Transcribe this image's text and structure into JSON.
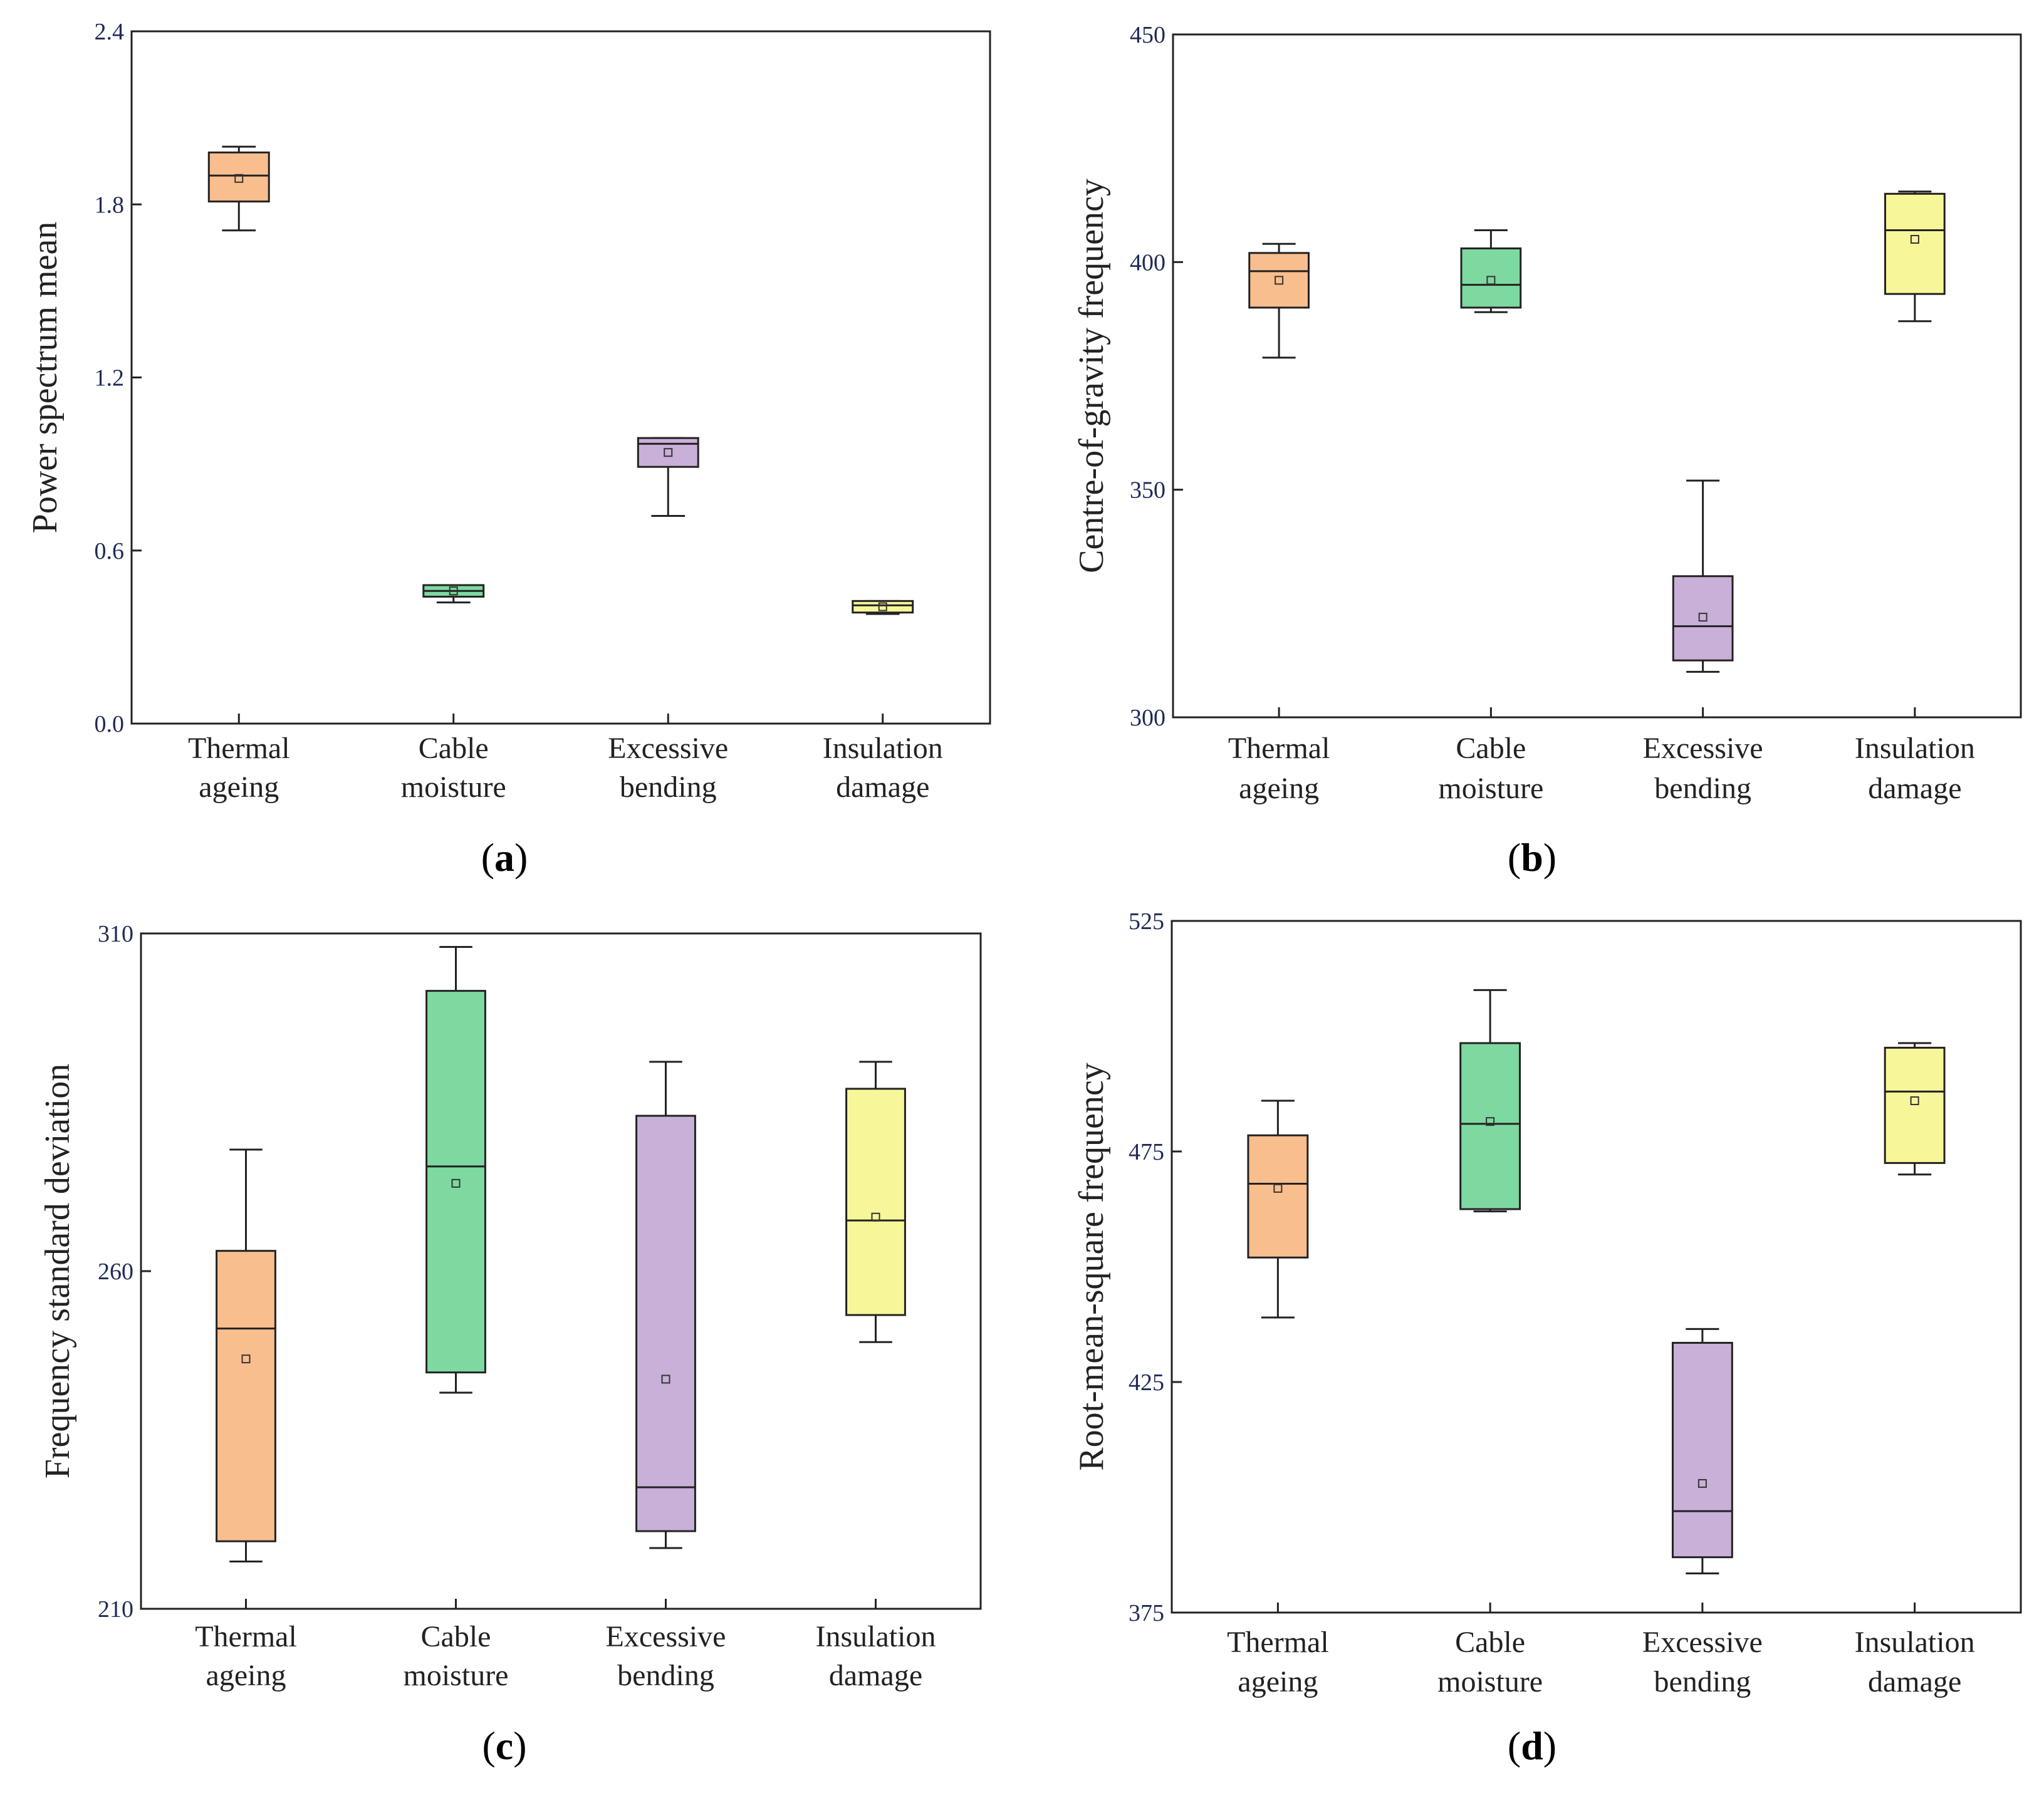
{
  "figure": {
    "panels_count": 4
  },
  "chart_data": [
    {
      "id": "a",
      "type": "box",
      "panel_label": "a",
      "ylabel": "Power spectrum mean",
      "xlabel": "",
      "ylim": [
        0.0,
        2.4
      ],
      "yticks": [
        "0.0",
        "0.6",
        "1.2",
        "1.8",
        "2.4"
      ],
      "ytick_values": [
        0.0,
        0.6,
        1.2,
        1.8,
        2.4
      ],
      "categories": [
        [
          "Thermal",
          "ageing"
        ],
        [
          "Cable",
          "moisture"
        ],
        [
          "Excessive",
          "bending"
        ],
        [
          "Insulation",
          "damage"
        ]
      ],
      "colors": [
        "#f9be8e",
        "#7dd9a0",
        "#c9b0d8",
        "#f7f79a"
      ],
      "boxes": [
        {
          "whisker_low": 1.71,
          "q1": 1.81,
          "median": 1.9,
          "q3": 1.98,
          "whisker_high": 2.0,
          "mean": 1.89
        },
        {
          "whisker_low": 0.42,
          "q1": 0.44,
          "median": 0.46,
          "q3": 0.48,
          "whisker_high": 0.48,
          "mean": 0.46
        },
        {
          "whisker_low": 0.72,
          "q1": 0.89,
          "median": 0.97,
          "q3": 0.99,
          "whisker_high": 0.99,
          "mean": 0.94
        },
        {
          "whisker_low": 0.38,
          "q1": 0.385,
          "median": 0.41,
          "q3": 0.425,
          "whisker_high": 0.425,
          "mean": 0.405
        }
      ]
    },
    {
      "id": "b",
      "type": "box",
      "panel_label": "b",
      "ylabel": "Centre-of-gravity frequency",
      "xlabel": "",
      "ylim": [
        300,
        450
      ],
      "yticks": [
        "300",
        "350",
        "400",
        "450"
      ],
      "ytick_values": [
        300,
        350,
        400,
        450
      ],
      "categories": [
        [
          "Thermal",
          "ageing"
        ],
        [
          "Cable",
          "moisture"
        ],
        [
          "Excessive",
          "bending"
        ],
        [
          "Insulation",
          "damage"
        ]
      ],
      "colors": [
        "#f9be8e",
        "#7dd9a0",
        "#c9b0d8",
        "#f7f79a"
      ],
      "boxes": [
        {
          "whisker_low": 379,
          "q1": 390,
          "median": 398,
          "q3": 402,
          "whisker_high": 404,
          "mean": 396
        },
        {
          "whisker_low": 389,
          "q1": 390,
          "median": 395,
          "q3": 403,
          "whisker_high": 407,
          "mean": 396
        },
        {
          "whisker_low": 310,
          "q1": 312.5,
          "median": 320,
          "q3": 331,
          "whisker_high": 352,
          "mean": 322
        },
        {
          "whisker_low": 387,
          "q1": 393,
          "median": 407,
          "q3": 415,
          "whisker_high": 415.5,
          "mean": 405
        }
      ]
    },
    {
      "id": "c",
      "type": "box",
      "panel_label": "c",
      "ylabel": "Frequency standard deviation",
      "xlabel": "",
      "ylim": [
        210,
        310
      ],
      "yticks": [
        "210",
        "260",
        "310"
      ],
      "ytick_values": [
        210,
        260,
        310
      ],
      "categories": [
        [
          "Thermal",
          "ageing"
        ],
        [
          "Cable",
          "moisture"
        ],
        [
          "Excessive",
          "bending"
        ],
        [
          "Insulation",
          "damage"
        ]
      ],
      "colors": [
        "#f9be8e",
        "#7dd9a0",
        "#c9b0d8",
        "#f7f79a"
      ],
      "boxes": [
        {
          "whisker_low": 217,
          "q1": 220,
          "median": 251.5,
          "q3": 263,
          "whisker_high": 278,
          "mean": 247
        },
        {
          "whisker_low": 242,
          "q1": 245,
          "median": 275.5,
          "q3": 301.5,
          "whisker_high": 308,
          "mean": 273
        },
        {
          "whisker_low": 219,
          "q1": 221.5,
          "median": 228,
          "q3": 283,
          "whisker_high": 291,
          "mean": 244
        },
        {
          "whisker_low": 249.5,
          "q1": 253.5,
          "median": 267.5,
          "q3": 287,
          "whisker_high": 291,
          "mean": 268
        }
      ]
    },
    {
      "id": "d",
      "type": "box",
      "panel_label": "d",
      "ylabel": "Root-mean-square frequency",
      "xlabel": "",
      "ylim": [
        375,
        525
      ],
      "yticks": [
        "375",
        "425",
        "475",
        "525"
      ],
      "ytick_values": [
        375,
        425,
        475,
        525
      ],
      "categories": [
        [
          "Thermal",
          "ageing"
        ],
        [
          "Cable",
          "moisture"
        ],
        [
          "Excessive",
          "bending"
        ],
        [
          "Insulation",
          "damage"
        ]
      ],
      "colors": [
        "#f9be8e",
        "#7dd9a0",
        "#c9b0d8",
        "#f7f79a"
      ],
      "boxes": [
        {
          "whisker_low": 439,
          "q1": 452,
          "median": 468,
          "q3": 478.5,
          "whisker_high": 486,
          "mean": 467
        },
        {
          "whisker_low": 462,
          "q1": 462.5,
          "median": 481,
          "q3": 498.5,
          "whisker_high": 510,
          "mean": 481.5
        },
        {
          "whisker_low": 383.5,
          "q1": 387,
          "median": 397,
          "q3": 433.5,
          "whisker_high": 436.5,
          "mean": 403
        },
        {
          "whisker_low": 470,
          "q1": 472.5,
          "median": 488,
          "q3": 497.5,
          "whisker_high": 498.5,
          "mean": 486
        }
      ]
    }
  ]
}
